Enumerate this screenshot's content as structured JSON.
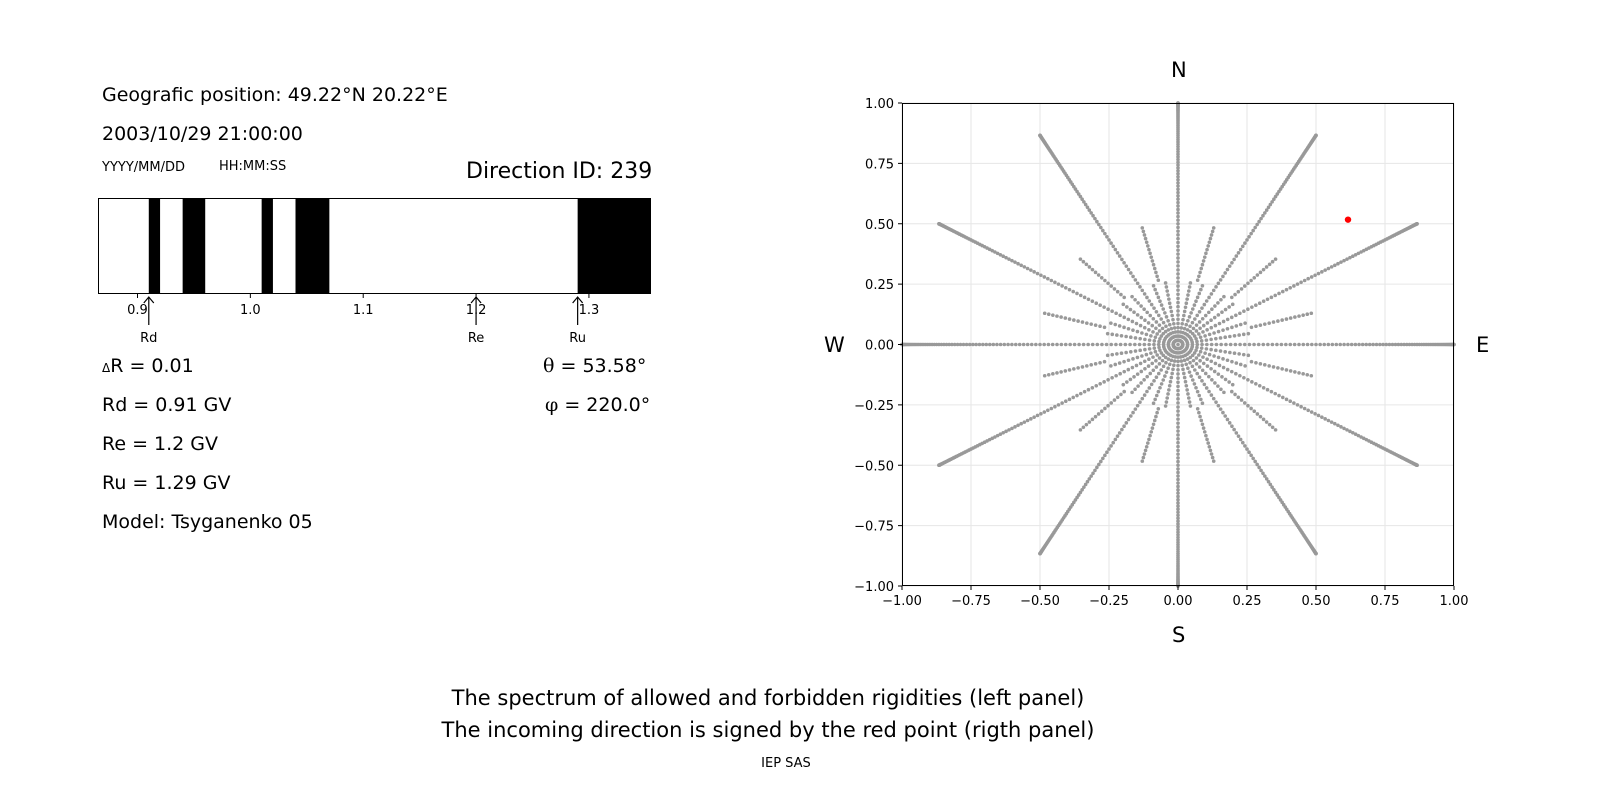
{
  "info": {
    "position": "Geografic position: 49.22°N 20.22°E",
    "datetime": "2003/10/29 21:00:00",
    "date_format": "YYYY/MM/DD",
    "time_format": "HH:MM:SS",
    "direction": "Direction ID: 239",
    "delta_r_symbol": "Δ",
    "delta_r_text": "R = 0.01",
    "rd": "Rd = 0.91 GV",
    "re": "Re = 1.2 GV",
    "ru": "Ru = 1.29 GV",
    "model": "Model: Tsyganenko 05",
    "theta_symbol": "θ",
    "theta_text": " = 53.58°",
    "phi_symbol": "φ",
    "phi_text": " = 220.0°"
  },
  "captions": {
    "line1": "The spectrum of allowed and forbidden rigidities (left panel)",
    "line2": "The incoming direction is signed by the red point (rigth panel)",
    "credit": "IEP SAS"
  },
  "colors": {
    "forbidden": "#000000",
    "allowed": "#ffffff",
    "grid_points": "#999999",
    "selected_point": "#ff0000"
  },
  "chart_data": [
    {
      "type": "bar",
      "subtype": "rigidity-spectrum",
      "xlim": [
        0.865,
        1.355
      ],
      "xticks": [
        0.9,
        1.0,
        1.1,
        1.2,
        1.3
      ],
      "xtick_labels": [
        "0.9",
        "1.0",
        "1.1",
        "1.2",
        "1.3"
      ],
      "forbidden_bands": [
        [
          0.91,
          0.92
        ],
        [
          0.94,
          0.96
        ],
        [
          1.01,
          1.02
        ],
        [
          1.04,
          1.07
        ],
        [
          1.29,
          1.355
        ]
      ],
      "markers": [
        {
          "label": "Rd",
          "value": 0.91
        },
        {
          "label": "Re",
          "value": 1.2
        },
        {
          "label": "Ru",
          "value": 1.29
        }
      ]
    },
    {
      "type": "scatter",
      "subtype": "direction-map",
      "xlim": [
        -1.0,
        1.0
      ],
      "ylim": [
        -1.0,
        1.0
      ],
      "xticks": [
        "−1.00",
        "−0.75",
        "−0.50",
        "−0.25",
        "0.00",
        "0.25",
        "0.50",
        "0.75",
        "1.00"
      ],
      "yticks": [
        "1.00",
        "0.75",
        "0.50",
        "0.25",
        "0.00",
        "−0.25",
        "−0.50",
        "−0.75",
        "−1.00"
      ],
      "directions": {
        "north": "N",
        "south": "S",
        "west": "W",
        "east": "E"
      },
      "grid": true,
      "selected_point": {
        "x": 0.616,
        "y": 0.517
      }
    }
  ]
}
